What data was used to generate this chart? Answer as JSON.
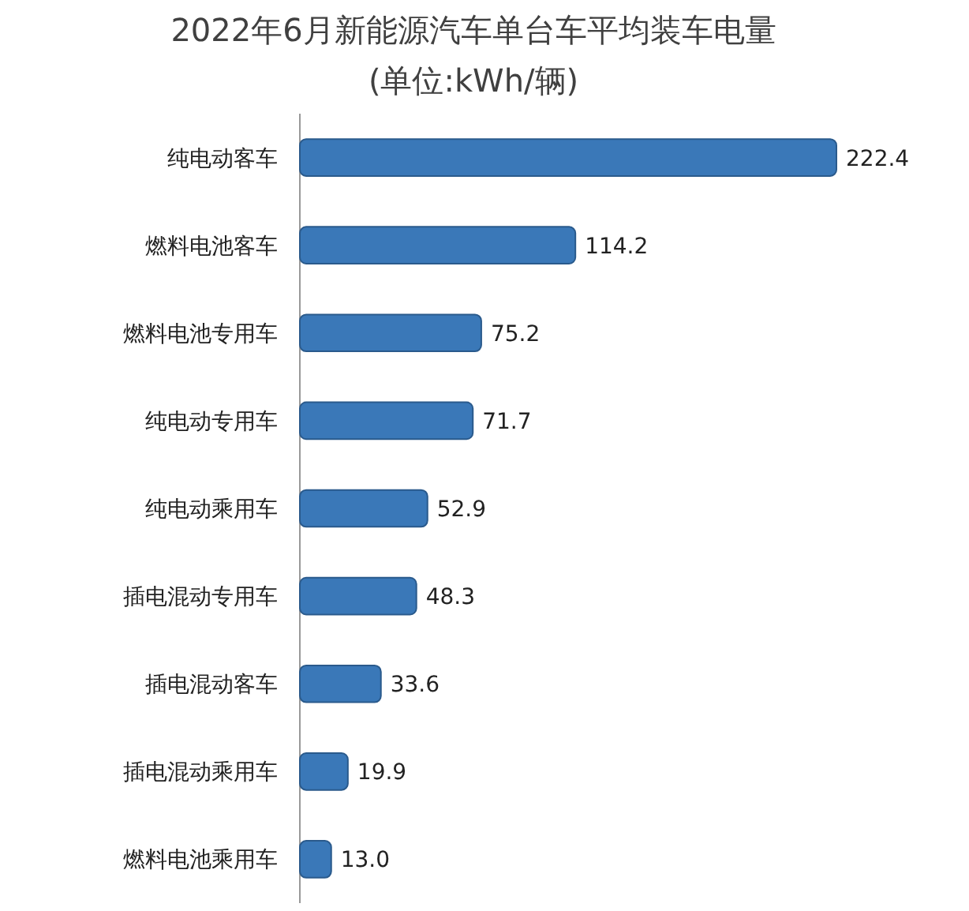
{
  "chart_data": {
    "type": "bar",
    "orientation": "horizontal",
    "title": "2022年6月新能源汽车单台车平均装车电量",
    "subtitle": "(单位:kWh/辆)",
    "categories": [
      "纯电动客车",
      "燃料电池客车",
      "燃料电池专用车",
      "纯电动专用车",
      "纯电动乘用车",
      "插电混动专用车",
      "插电混动客车",
      "插电混动乘用车",
      "燃料电池乘用车"
    ],
    "values": [
      222.4,
      114.2,
      75.2,
      71.7,
      52.9,
      48.3,
      33.6,
      19.9,
      13.0
    ],
    "value_labels": [
      "222.4",
      "114.2",
      "75.2",
      "71.7",
      "52.9",
      "48.3",
      "33.6",
      "19.9",
      "13.0"
    ],
    "color": "#3a78b8"
  }
}
